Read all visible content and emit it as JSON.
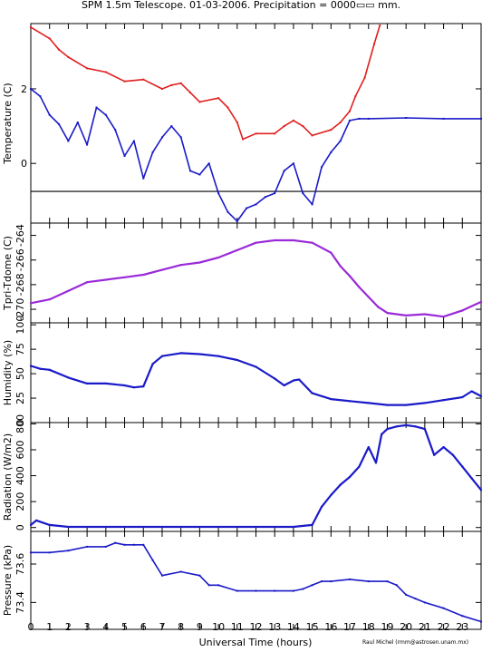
{
  "title": "SPM 1.5m Telescope. 01-03-2006. Precipitation = 0000▭▭ mm.",
  "xlabel": "Universal Time (hours)",
  "credit": "Raul Michel (rmm@astrosen.unam.mx)",
  "colors": {
    "red": "#e02020",
    "blue": "#1a1ac8",
    "purple": "#9a2ad8",
    "black": "#000000"
  },
  "x_ticks": [
    "0",
    "1",
    "2",
    "3",
    "4",
    "5",
    "6",
    "7",
    "8",
    "9",
    "10",
    "11",
    "12",
    "13",
    "14",
    "15",
    "16",
    "17",
    "18",
    "19",
    "20",
    "21",
    "22",
    "23"
  ],
  "chart_data": [
    {
      "type": "scatter",
      "ylabel": "Temperature (C)",
      "y_ticks": [
        "0",
        "2"
      ],
      "ylim": [
        -1.6,
        3.75
      ],
      "xlim": [
        0,
        24
      ],
      "hline": -0.75,
      "series": [
        {
          "color": "red",
          "x": [
            0,
            1,
            1.5,
            2,
            3,
            4,
            5,
            6,
            7,
            7.5,
            8,
            8.5,
            9,
            10,
            10.5,
            11,
            11.3,
            12,
            13,
            13.5,
            14,
            14.5,
            15,
            16,
            16.5,
            17,
            17.3,
            17.8,
            18.3,
            18.6
          ],
          "y": [
            3.65,
            3.35,
            3.05,
            2.85,
            2.55,
            2.45,
            2.2,
            2.25,
            2.0,
            2.1,
            2.15,
            1.9,
            1.65,
            1.75,
            1.5,
            1.1,
            0.65,
            0.8,
            0.8,
            1.0,
            1.15,
            1.0,
            0.75,
            0.9,
            1.1,
            1.4,
            1.8,
            2.3,
            3.2,
            3.7
          ]
        },
        {
          "color": "blue",
          "x": [
            0,
            0.5,
            1,
            1.5,
            2,
            2.5,
            3,
            3.5,
            4,
            4.5,
            5,
            5.5,
            6,
            6.5,
            7,
            7.5,
            8,
            8.5,
            9,
            9.5,
            10,
            10.5,
            11,
            11.5,
            12,
            12.5,
            13,
            13.5,
            14,
            14.5,
            15,
            15.5,
            16,
            16.5,
            17,
            17.5,
            18,
            20,
            22,
            24
          ],
          "y": [
            2.0,
            1.8,
            1.3,
            1.05,
            0.6,
            1.1,
            0.5,
            1.5,
            1.3,
            0.9,
            0.2,
            0.6,
            -0.4,
            0.3,
            0.7,
            1.0,
            0.7,
            -0.2,
            -0.3,
            0.0,
            -0.8,
            -1.3,
            -1.55,
            -1.2,
            -1.1,
            -0.9,
            -0.8,
            -0.2,
            0.0,
            -0.8,
            -1.1,
            -0.1,
            0.3,
            0.6,
            1.15,
            1.2,
            1.2,
            1.22,
            1.2,
            1.2
          ]
        }
      ]
    },
    {
      "type": "line",
      "ylabel": "Tpri-Tdome (C)",
      "y_ticks": [
        "-270",
        "-268",
        "-266",
        "-264"
      ],
      "ylim": [
        -271.1,
        -263.0
      ],
      "xlim": [
        0,
        24
      ],
      "series": [
        {
          "color": "purple",
          "x": [
            0,
            1,
            2,
            3,
            4,
            5,
            6,
            7,
            8,
            9,
            10,
            11,
            12,
            13,
            14,
            15,
            16,
            16.5,
            17,
            17.5,
            18,
            18.5,
            19,
            20,
            21,
            22,
            23,
            24
          ],
          "y": [
            -269.5,
            -269.2,
            -268.5,
            -267.8,
            -267.6,
            -267.4,
            -267.2,
            -266.8,
            -266.4,
            -266.2,
            -265.8,
            -265.2,
            -264.6,
            -264.4,
            -264.4,
            -264.6,
            -265.4,
            -266.5,
            -267.3,
            -268.2,
            -269.0,
            -269.8,
            -270.3,
            -270.5,
            -270.4,
            -270.6,
            -270.1,
            -269.4
          ]
        }
      ]
    },
    {
      "type": "line",
      "ylabel": "Humidity (%)",
      "y_ticks": [
        "0",
        "25",
        "50",
        "75",
        "100"
      ],
      "ylim": [
        0,
        102
      ],
      "xlim": [
        0,
        24
      ],
      "series": [
        {
          "color": "blue",
          "x": [
            0,
            0.5,
            1,
            2,
            3,
            4,
            5,
            5.5,
            6,
            6.5,
            7,
            8,
            9,
            10,
            11,
            12,
            13,
            13.5,
            14,
            14.3,
            15,
            16,
            17,
            18,
            19,
            20,
            21,
            22,
            23,
            23.5,
            24
          ],
          "y": [
            58,
            55,
            54,
            46,
            40,
            40,
            38,
            36,
            37,
            60,
            68,
            71,
            70,
            68,
            64,
            57,
            45,
            38,
            43,
            44,
            30,
            24,
            22,
            20,
            18,
            18,
            20,
            23,
            26,
            32,
            27
          ]
        }
      ]
    },
    {
      "type": "line",
      "ylabel": "Radiation (W/m2)",
      "y_ticks": [
        "0",
        "200",
        "400",
        "600",
        "800"
      ],
      "ylim": [
        -30,
        810
      ],
      "xlim": [
        0,
        24
      ],
      "series": [
        {
          "color": "blue",
          "x": [
            0,
            0.3,
            1,
            2,
            3,
            4,
            5,
            6,
            7,
            8,
            9,
            10,
            11,
            12,
            13,
            14,
            15,
            15.5,
            16,
            16.5,
            17,
            17.5,
            18,
            18.4,
            18.7,
            19,
            19.5,
            20,
            20.5,
            21,
            21.5,
            22,
            22.5,
            23,
            23.5,
            24
          ],
          "y": [
            20,
            55,
            20,
            5,
            5,
            5,
            5,
            5,
            5,
            5,
            5,
            5,
            5,
            5,
            5,
            5,
            20,
            160,
            250,
            330,
            390,
            470,
            620,
            500,
            720,
            760,
            780,
            790,
            780,
            760,
            560,
            620,
            560,
            470,
            380,
            290
          ]
        }
      ]
    },
    {
      "type": "scatter",
      "ylabel": "Pressure (kPa)",
      "y_ticks": [
        "73.4",
        "73.6"
      ],
      "ylim": [
        73.26,
        73.77
      ],
      "xlim": [
        0,
        24
      ],
      "series": [
        {
          "color": "blue",
          "x": [
            0,
            1,
            2,
            3,
            4,
            4.5,
            5,
            5.5,
            6,
            6.5,
            7,
            8,
            9,
            9.5,
            10,
            11,
            12,
            13,
            14,
            14.5,
            15,
            15.5,
            16,
            17,
            18,
            19,
            19.5,
            20,
            20.5,
            21,
            22,
            23,
            24
          ],
          "y": [
            73.66,
            73.66,
            73.67,
            73.69,
            73.69,
            73.71,
            73.7,
            73.7,
            73.7,
            73.62,
            73.54,
            73.56,
            73.54,
            73.49,
            73.49,
            73.46,
            73.46,
            73.46,
            73.46,
            73.47,
            73.49,
            73.51,
            73.51,
            73.52,
            73.51,
            73.51,
            73.49,
            73.44,
            73.42,
            73.4,
            73.37,
            73.33,
            73.3
          ]
        }
      ]
    }
  ]
}
